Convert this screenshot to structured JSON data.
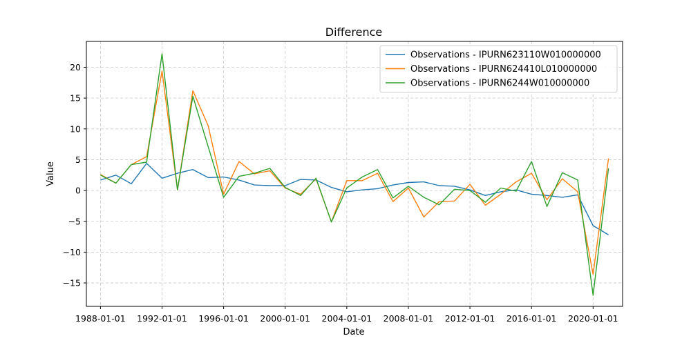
{
  "chart_data": {
    "type": "line",
    "title": "Difference",
    "xlabel": "Date",
    "ylabel": "Value",
    "x": [
      "1988-01-01",
      "1989-01-01",
      "1990-01-01",
      "1991-01-01",
      "1992-01-01",
      "1993-01-01",
      "1994-01-01",
      "1995-01-01",
      "1996-01-01",
      "1997-01-01",
      "1998-01-01",
      "1999-01-01",
      "2000-01-01",
      "2001-01-01",
      "2002-01-01",
      "2003-01-01",
      "2004-01-01",
      "2005-01-01",
      "2006-01-01",
      "2007-01-01",
      "2008-01-01",
      "2009-01-01",
      "2010-01-01",
      "2011-01-01",
      "2012-01-01",
      "2013-01-01",
      "2014-01-01",
      "2015-01-01",
      "2016-01-01",
      "2017-01-01",
      "2018-01-01",
      "2019-01-01",
      "2020-01-01",
      "2021-01-01"
    ],
    "xticks": [
      "1988-01-01",
      "1992-01-01",
      "1996-01-01",
      "2000-01-01",
      "2004-01-01",
      "2008-01-01",
      "2012-01-01",
      "2016-01-01",
      "2020-01-01"
    ],
    "xlim": [
      "1987-02-01",
      "2021-12-01"
    ],
    "ylim": [
      -18.8,
      24.2
    ],
    "yticks": [
      -15,
      -10,
      -5,
      0,
      5,
      10,
      15,
      20
    ],
    "grid": true,
    "legend_position": "top-right",
    "series": [
      {
        "name": "Observations - IPURN623110W010000000",
        "color": "#1f77b4",
        "values": [
          1.7,
          2.5,
          1.1,
          4.4,
          2.0,
          2.8,
          3.4,
          2.1,
          2.2,
          1.7,
          0.9,
          0.8,
          0.8,
          1.8,
          1.7,
          0.5,
          -0.2,
          0.1,
          0.3,
          0.9,
          1.3,
          1.4,
          0.8,
          0.7,
          0.1,
          -0.8,
          -0.2,
          0.1,
          -0.6,
          -0.8,
          -1.1,
          -0.7,
          -5.7,
          -7.2
        ]
      },
      {
        "name": "Observations - IPURN624410L010000000",
        "color": "#ff7f0e",
        "values": [
          2.6,
          1.2,
          4.2,
          5.5,
          19.4,
          0.1,
          16.2,
          10.5,
          -0.6,
          4.7,
          2.7,
          3.2,
          0.4,
          -0.6,
          1.9,
          -5.1,
          1.6,
          1.6,
          2.8,
          -1.8,
          0.4,
          -4.3,
          -1.8,
          -1.7,
          1.0,
          -2.4,
          -0.6,
          1.4,
          2.8,
          -1.5,
          1.9,
          -0.2,
          -13.6,
          5.2
        ]
      },
      {
        "name": "Observations - IPURN6244W010000000",
        "color": "#2ca02c",
        "values": [
          2.5,
          1.2,
          4.2,
          4.6,
          22.2,
          0.1,
          15.3,
          7.1,
          -1.1,
          2.3,
          2.8,
          3.6,
          0.5,
          -0.8,
          2.0,
          -5.1,
          0.4,
          2.2,
          3.4,
          -1.2,
          0.7,
          -1.1,
          -2.3,
          0.2,
          0.0,
          -1.9,
          0.4,
          -0.1,
          4.7,
          -2.6,
          2.9,
          1.7,
          -17.0,
          3.6
        ]
      }
    ]
  }
}
